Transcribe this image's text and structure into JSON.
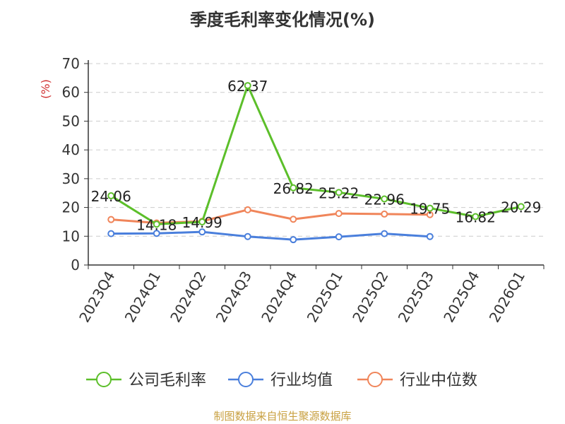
{
  "title": "季度毛利率变化情况(%)",
  "source": "制图数据来自恒生聚源数据库",
  "chart_data": {
    "type": "line",
    "title": "季度毛利率变化情况(%)",
    "ylabel": "(%)",
    "xlabel": "",
    "ylim": [
      0,
      70
    ],
    "yticks": [
      0,
      10,
      20,
      30,
      40,
      50,
      60,
      70
    ],
    "grid": true,
    "legend_position": "bottom",
    "categories": [
      "2023Q4",
      "2024Q1",
      "2024Q2",
      "2024Q3",
      "2024Q4",
      "2025Q1",
      "2025Q2",
      "2025Q3",
      "2025Q4",
      "2026Q1"
    ],
    "series": [
      {
        "name": "公司毛利率",
        "color": "#5cbf2a",
        "values": [
          24.06,
          14.18,
          14.99,
          62.37,
          26.82,
          25.22,
          22.96,
          19.75,
          16.82,
          20.29
        ],
        "labels": [
          "24.06",
          "14.18",
          "14.99",
          "62.37",
          "26.82",
          "25.22",
          "22.96",
          "19.75",
          "16.82",
          "20.29"
        ]
      },
      {
        "name": "行业均值",
        "color": "#4a7fdc",
        "values": [
          10.9,
          11.0,
          11.5,
          9.9,
          8.8,
          9.8,
          10.9,
          9.9,
          null,
          null
        ]
      },
      {
        "name": "行业中位数",
        "color": "#f0855a",
        "values": [
          15.8,
          14.6,
          15.2,
          19.2,
          15.9,
          17.9,
          17.7,
          17.5,
          null,
          null
        ]
      }
    ]
  }
}
